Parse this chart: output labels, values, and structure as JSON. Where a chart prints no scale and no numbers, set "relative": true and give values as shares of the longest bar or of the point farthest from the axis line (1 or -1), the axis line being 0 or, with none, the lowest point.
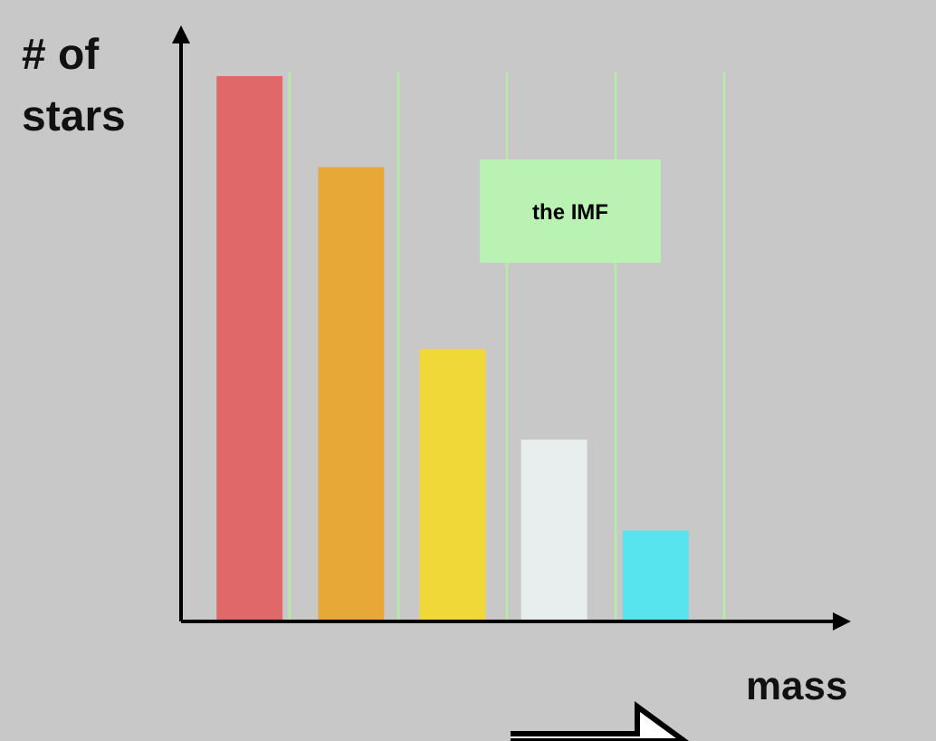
{
  "chart_data": {
    "type": "bar",
    "relative": true,
    "categories": [
      null,
      null,
      null,
      null,
      null
    ],
    "values": [
      1,
      0.8333,
      0.5,
      0.3333,
      0.1667
    ],
    "colors": [
      "#e06868",
      "#e8a838",
      "#f0d838",
      "#e8eeee",
      "#58e4ee"
    ],
    "xlabel": "mass",
    "ylabel": "# of stars",
    "annotations": [
      "the IMF"
    ],
    "grid": "x"
  }
}
